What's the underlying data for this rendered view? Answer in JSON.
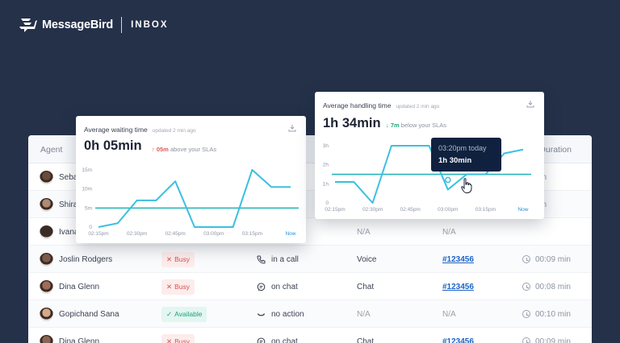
{
  "brand": {
    "name": "MessageBird",
    "product": "INBOX"
  },
  "colors": {
    "background": "#243149",
    "chart_line": "#3bbfe0",
    "sla_line": "#20b2b8",
    "busy": "#d9534f",
    "available": "#20a07a",
    "ticket_link": "#1b63c6",
    "tooltip": "#10213f"
  },
  "table": {
    "headers": {
      "agent": "Agent",
      "duration": "Duration"
    },
    "rows": [
      {
        "agent": "Seba",
        "status": "",
        "status_type": "",
        "activity": "",
        "activity_icon": "",
        "channel": "",
        "ticket": "",
        "duration": "23 min"
      },
      {
        "agent": "Shira",
        "status": "",
        "status_type": "",
        "activity": "",
        "activity_icon": "",
        "channel": "",
        "ticket": "",
        "duration": "12 min"
      },
      {
        "agent": "Ivana",
        "status": "",
        "status_type": "",
        "activity": "",
        "activity_icon": "",
        "channel": "N/A",
        "ticket": "N/A",
        "duration": ""
      },
      {
        "agent": "Joslin Rodgers",
        "status": "Busy",
        "status_type": "busy",
        "activity": "in a call",
        "activity_icon": "phone-icon",
        "channel": "Voice",
        "ticket": "#123456",
        "duration": "00:09 min"
      },
      {
        "agent": "Dina Glenn",
        "status": "Busy",
        "status_type": "busy",
        "activity": "on chat",
        "activity_icon": "chat-bubble-icon",
        "channel": "Chat",
        "ticket": "#123456",
        "duration": "00:08 min"
      },
      {
        "agent": "Gopichand Sana",
        "status": "Available",
        "status_type": "available",
        "activity": "no action",
        "activity_icon": "smile-icon",
        "channel": "N/A",
        "ticket": "N/A",
        "duration": "00:10 min"
      },
      {
        "agent": "Dina Glenn",
        "status": "Busy",
        "status_type": "busy",
        "activity": "on chat",
        "activity_icon": "chat-bubble-icon",
        "channel": "Chat",
        "ticket": "#123456",
        "duration": "00:09 min"
      }
    ]
  },
  "waiting_card": {
    "title": "Average waiting time",
    "updated": "updated 2 min ago",
    "value": "0h 05min",
    "delta_value": "↑ 05m",
    "delta_text": "above your SLAs",
    "download_icon": "download-icon"
  },
  "handling_card": {
    "title": "Average handling time",
    "updated": "updated 2 min ago",
    "value": "1h 34min",
    "delta_value": "↓ 7m",
    "delta_text": "below your SLAs",
    "download_icon": "download-icon"
  },
  "tooltip": {
    "time": "03:20pm today",
    "value": "1h 30min"
  },
  "chart_data": [
    {
      "type": "line",
      "title": "Average waiting time",
      "x": [
        "02:15pm",
        "02:30pm",
        "02:45pm",
        "03:00pm",
        "03:15pm",
        "Now"
      ],
      "y_ticks": [
        "0",
        "5m",
        "10m",
        "15m"
      ],
      "ylim": [
        0,
        15
      ],
      "series": [
        {
          "x": [
            0,
            0.5,
            1,
            1.5,
            2,
            2.5,
            3,
            3.5,
            4,
            4.5,
            5
          ],
          "values": [
            0,
            1,
            7,
            7,
            12,
            0,
            0,
            0,
            15,
            10.5,
            10.5
          ]
        }
      ],
      "sla_line": 5
    },
    {
      "type": "line",
      "title": "Average handling time",
      "x": [
        "02:15pm",
        "02:30pm",
        "02:45pm",
        "03:00pm",
        "03:15pm",
        "Now"
      ],
      "y_ticks": [
        "0",
        "1h",
        "2h",
        "3h"
      ],
      "ylim": [
        0,
        3
      ],
      "series": [
        {
          "x": [
            0,
            0.5,
            1,
            1.5,
            2,
            2.5,
            3,
            3.5,
            4,
            4.5,
            5
          ],
          "values": [
            1.1,
            1.1,
            0,
            3,
            3,
            3,
            0.7,
            1.5,
            1.5,
            2.6,
            2.8
          ]
        }
      ],
      "sla_line": 1.5
    }
  ]
}
